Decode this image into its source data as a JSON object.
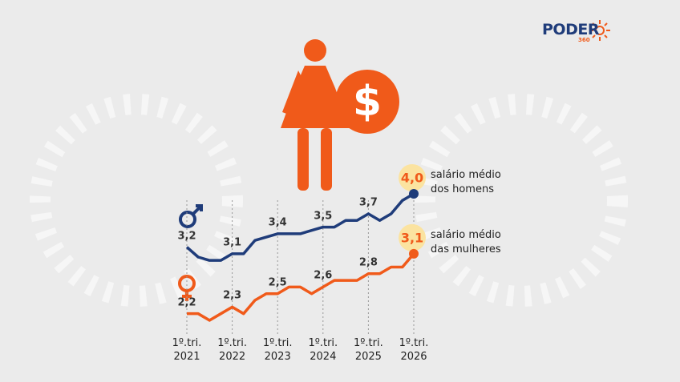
{
  "logo": {
    "name": "PODER",
    "sub": "360"
  },
  "chart_data": {
    "type": "line",
    "categories": [
      "1º.tri. 2021",
      null,
      null,
      null,
      "1º.tri. 2022",
      null,
      null,
      null,
      "1º.tri. 2023",
      null,
      null,
      null,
      "1º.tri. 2024",
      null,
      null,
      null,
      "1º.tri. 2025",
      null,
      null,
      null,
      "1º.tri. 2026"
    ],
    "series": [
      {
        "name": "salário médio dos homens",
        "color": "#1f3c7a",
        "values": [
          3.2,
          3.05,
          3.0,
          3.0,
          3.1,
          3.1,
          3.3,
          3.35,
          3.4,
          3.4,
          3.4,
          3.45,
          3.5,
          3.5,
          3.6,
          3.6,
          3.7,
          3.6,
          3.7,
          3.9,
          4.0
        ],
        "value_labels": [
          "3,2",
          null,
          null,
          null,
          "3,1",
          null,
          null,
          null,
          "3,4",
          null,
          null,
          null,
          "3,5",
          null,
          null,
          null,
          "3,7",
          null,
          null,
          null,
          "4,0"
        ]
      },
      {
        "name": "salário médio das mulheres",
        "color": "#f05a1a",
        "values": [
          2.2,
          2.2,
          2.1,
          2.2,
          2.3,
          2.2,
          2.4,
          2.5,
          2.5,
          2.6,
          2.6,
          2.5,
          2.6,
          2.7,
          2.7,
          2.7,
          2.8,
          2.8,
          2.9,
          2.9,
          3.1
        ],
        "value_labels": [
          "2,2",
          null,
          null,
          null,
          "2,3",
          null,
          null,
          null,
          "2,5",
          null,
          null,
          null,
          "2,6",
          null,
          null,
          null,
          "2,8",
          null,
          null,
          null,
          "3,1"
        ]
      }
    ]
  }
}
